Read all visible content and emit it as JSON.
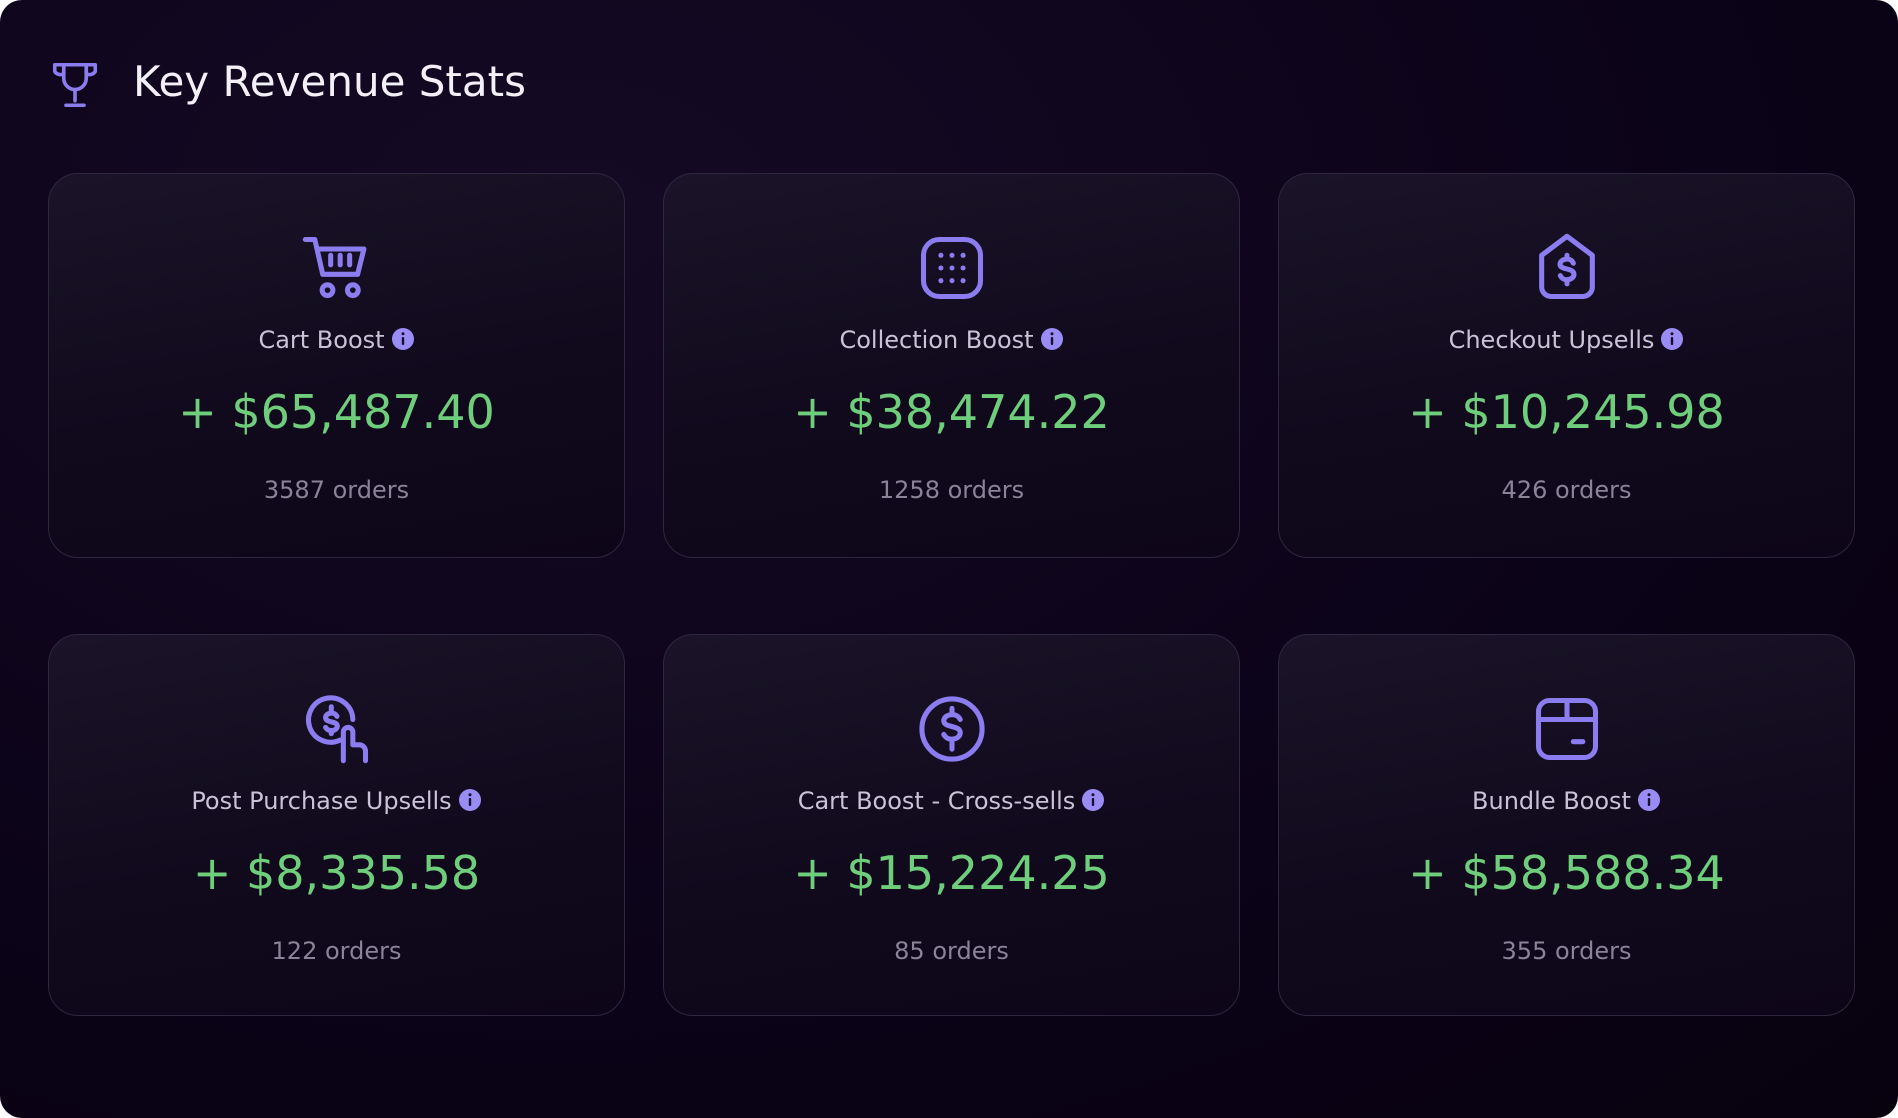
{
  "header": {
    "title": "Key Revenue Stats"
  },
  "cards": [
    {
      "label": "Cart Boost",
      "amount": "+ $65,487.40",
      "orders": "3587 orders"
    },
    {
      "label": "Collection Boost",
      "amount": "+ $38,474.22",
      "orders": "1258 orders"
    },
    {
      "label": "Checkout Upsells",
      "amount": "+ $10,245.98",
      "orders": "426 orders"
    },
    {
      "label": "Post Purchase Upsells",
      "amount": "+ $8,335.58",
      "orders": "122 orders"
    },
    {
      "label": "Cart Boost - Cross-sells",
      "amount": "+ $15,224.25",
      "orders": "85 orders"
    },
    {
      "label": "Bundle Boost",
      "amount": "+ $58,588.34",
      "orders": "355 orders"
    }
  ]
}
